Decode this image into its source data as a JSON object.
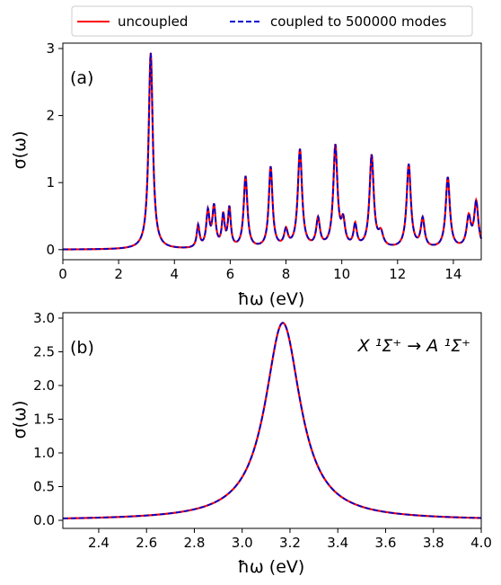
{
  "legend": {
    "entries": [
      {
        "label": "uncoupled",
        "color": "#ff0000",
        "dash": "solid"
      },
      {
        "label": "coupled to 500000 modes",
        "color": "#0000cc",
        "dash": "dashed"
      }
    ],
    "placement": "top-center"
  },
  "chart_data": [
    {
      "type": "line",
      "panel_label": "(a)",
      "xlabel": "ħω (eV)",
      "ylabel": "σ(ω)",
      "xlim": [
        0,
        15
      ],
      "ylim": [
        -0.15,
        3.08
      ],
      "xticks": [
        0,
        2,
        4,
        6,
        8,
        10,
        12,
        14
      ],
      "yticks": [
        0,
        1,
        2,
        3
      ],
      "grid": false,
      "baseline": 0.0,
      "peaks": [
        {
          "x": 3.15,
          "y": 2.93,
          "w": 0.09
        },
        {
          "x": 4.85,
          "y": 0.33,
          "w": 0.06
        },
        {
          "x": 5.2,
          "y": 0.53,
          "w": 0.07
        },
        {
          "x": 5.42,
          "y": 0.6,
          "w": 0.07
        },
        {
          "x": 5.75,
          "y": 0.47,
          "w": 0.06
        },
        {
          "x": 5.97,
          "y": 0.58,
          "w": 0.06
        },
        {
          "x": 6.55,
          "y": 1.07,
          "w": 0.08
        },
        {
          "x": 7.45,
          "y": 1.21,
          "w": 0.08
        },
        {
          "x": 8.0,
          "y": 0.25,
          "w": 0.08
        },
        {
          "x": 8.5,
          "y": 1.47,
          "w": 0.09
        },
        {
          "x": 9.15,
          "y": 0.42,
          "w": 0.08
        },
        {
          "x": 9.77,
          "y": 1.52,
          "w": 0.09
        },
        {
          "x": 10.05,
          "y": 0.35,
          "w": 0.08
        },
        {
          "x": 10.48,
          "y": 0.33,
          "w": 0.07
        },
        {
          "x": 11.07,
          "y": 1.38,
          "w": 0.09
        },
        {
          "x": 11.4,
          "y": 0.2,
          "w": 0.1
        },
        {
          "x": 12.4,
          "y": 1.25,
          "w": 0.09
        },
        {
          "x": 12.9,
          "y": 0.43,
          "w": 0.08
        },
        {
          "x": 13.8,
          "y": 1.06,
          "w": 0.09
        },
        {
          "x": 14.55,
          "y": 0.45,
          "w": 0.09
        },
        {
          "x": 14.82,
          "y": 0.68,
          "w": 0.09
        }
      ],
      "series": [
        {
          "name": "uncoupled",
          "color": "#ff0000"
        },
        {
          "name": "coupled to 500000 modes",
          "color": "#0000cc"
        }
      ]
    },
    {
      "type": "line",
      "panel_label": "(b)",
      "annotation": "X ¹Σ⁺ → A ¹Σ⁺",
      "xlabel": "ħω (eV)",
      "ylabel": "σ(ω)",
      "xlim": [
        2.25,
        4.0
      ],
      "ylim": [
        -0.12,
        3.08
      ],
      "xticks": [
        2.4,
        2.6,
        2.8,
        3.0,
        3.2,
        3.4,
        3.6,
        3.8,
        4.0
      ],
      "ytick_labels": [
        "0.0",
        "0.5",
        "1.0",
        "1.5",
        "2.0",
        "2.5",
        "3.0"
      ],
      "yticks": [
        0,
        0.5,
        1.0,
        1.5,
        2.0,
        2.5,
        3.0
      ],
      "grid": false,
      "peak": {
        "x": 3.17,
        "y": 2.93,
        "w": 0.09
      },
      "series": [
        {
          "name": "uncoupled",
          "color": "#ff0000"
        },
        {
          "name": "coupled to 500000 modes",
          "color": "#0000cc"
        }
      ]
    }
  ]
}
